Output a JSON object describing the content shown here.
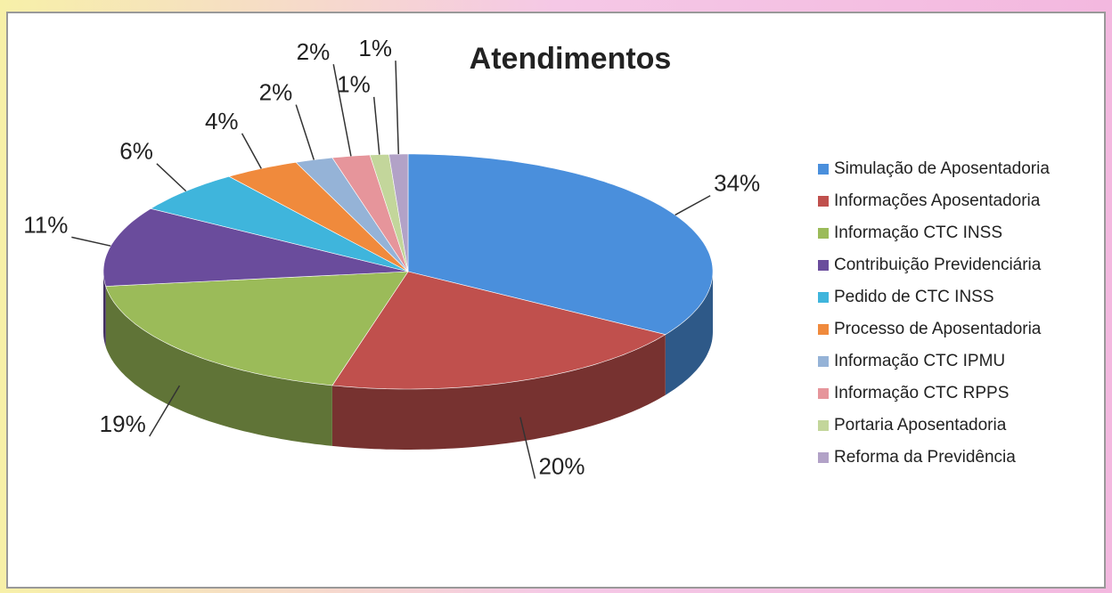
{
  "chart_data": {
    "type": "pie3d",
    "title": "Atendimentos",
    "categories": [
      "Simulação de Aposentadoria",
      "Informações Aposentadoria",
      "Informação CTC INSS",
      "Contribuição Previdenciária",
      "Pedido de CTC INSS",
      "Processo de Aposentadoria",
      "Informação CTC IPMU",
      "Informação CTC RPPS",
      "Portaria Aposentadoria",
      "Reforma da Previdência"
    ],
    "values": [
      34,
      20,
      19,
      11,
      6,
      4,
      2,
      2,
      1,
      1
    ],
    "value_labels": [
      "34%",
      "20%",
      "19%",
      "11%",
      "6%",
      "4%",
      "2%",
      "2%",
      "1%",
      "1%"
    ],
    "colors": [
      "#4a8fdc",
      "#c0504d",
      "#9bbb59",
      "#6a4c9c",
      "#3fb5dc",
      "#f08a3c",
      "#95b3d7",
      "#e6959b",
      "#c3d69b",
      "#b2a2c7"
    ],
    "legend": "right"
  }
}
